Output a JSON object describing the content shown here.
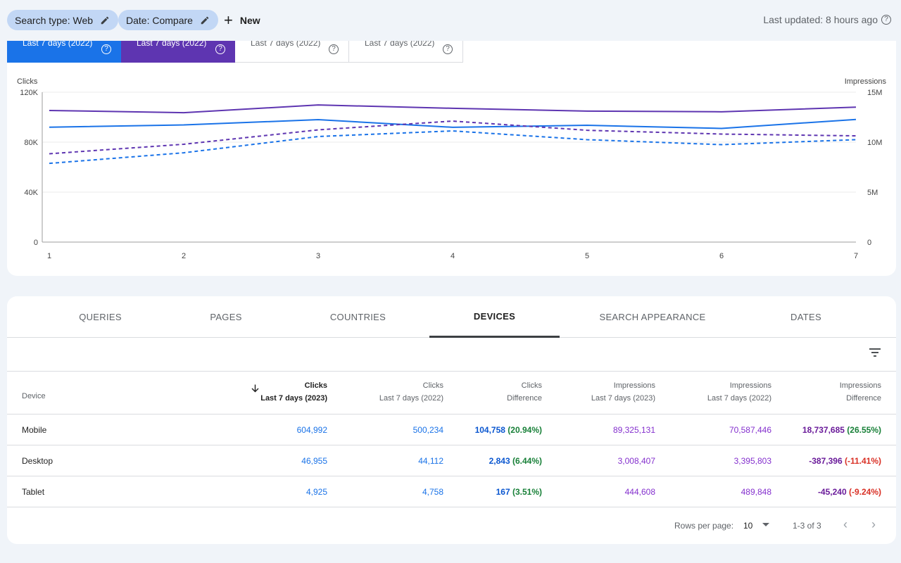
{
  "topbar": {
    "chips": [
      {
        "label": "Search type: Web"
      },
      {
        "label": "Date: Compare"
      }
    ],
    "new_label": "New",
    "last_updated": "Last updated: 8 hours ago"
  },
  "metric_tiles": [
    {
      "label": "Last 7 days (2022)",
      "style": "blue"
    },
    {
      "label": "Last 7 days (2022)",
      "style": "purple"
    },
    {
      "label": "Last 7 days (2022)",
      "style": "plain"
    },
    {
      "label": "Last 7 days (2022)",
      "style": "plain"
    }
  ],
  "chart_data": {
    "type": "line",
    "x": [
      1,
      2,
      3,
      4,
      5,
      6,
      7
    ],
    "left_axis": {
      "title": "Clicks",
      "ticks": [
        "0",
        "40K",
        "80K",
        "120K"
      ],
      "range": [
        0,
        120000
      ]
    },
    "right_axis": {
      "title": "Impressions",
      "ticks": [
        "0",
        "5M",
        "10M",
        "15M"
      ],
      "range": [
        0,
        15000000
      ]
    },
    "series": [
      {
        "name": "Impressions Last 7 days (2023)",
        "axis": "right",
        "color": "#5e35b1",
        "dashed": false,
        "values": [
          13170000,
          12950000,
          13720000,
          13390000,
          13110000,
          13040000,
          13500000
        ]
      },
      {
        "name": "Clicks Last 7 days (2023)",
        "axis": "left",
        "color": "#1a73e8",
        "dashed": false,
        "values": [
          92000,
          93800,
          98000,
          91900,
          93500,
          91000,
          98200
        ]
      },
      {
        "name": "Impressions Last 7 days (2022)",
        "axis": "right",
        "color": "#5e35b1",
        "dashed": true,
        "values": [
          8840000,
          9790000,
          11230000,
          12110000,
          11190000,
          10810000,
          10630000
        ]
      },
      {
        "name": "Clicks Last 7 days (2022)",
        "axis": "left",
        "color": "#1a73e8",
        "dashed": true,
        "values": [
          63000,
          71500,
          84500,
          89000,
          82000,
          78000,
          82000
        ]
      }
    ]
  },
  "tabs": [
    {
      "label": "QUERIES",
      "active": false
    },
    {
      "label": "PAGES",
      "active": false
    },
    {
      "label": "COUNTRIES",
      "active": false
    },
    {
      "label": "DEVICES",
      "active": true
    },
    {
      "label": "SEARCH APPEARANCE",
      "active": false
    },
    {
      "label": "DATES",
      "active": false
    }
  ],
  "table": {
    "headers": [
      {
        "label": "Device",
        "sub": ""
      },
      {
        "label": "Clicks",
        "sub": "Last 7 days (2023)"
      },
      {
        "label": "Clicks",
        "sub": "Last 7 days (2022)"
      },
      {
        "label": "Clicks",
        "sub": "Difference"
      },
      {
        "label": "Impressions",
        "sub": "Last 7 days (2023)"
      },
      {
        "label": "Impressions",
        "sub": "Last 7 days (2022)"
      },
      {
        "label": "Impressions",
        "sub": "Difference"
      }
    ],
    "rows": [
      {
        "device": "Mobile",
        "clicks_2023": "604,992",
        "clicks_2022": "500,234",
        "clicks_diff": "104,758",
        "clicks_pct": "(20.94%)",
        "impr_2023": "89,325,131",
        "impr_2022": "70,587,446",
        "impr_diff": "18,737,685",
        "impr_pct": "(26.55%)",
        "impr_pct_positive": true
      },
      {
        "device": "Desktop",
        "clicks_2023": "46,955",
        "clicks_2022": "44,112",
        "clicks_diff": "2,843",
        "clicks_pct": "(6.44%)",
        "impr_2023": "3,008,407",
        "impr_2022": "3,395,803",
        "impr_diff": "-387,396",
        "impr_pct": "(-11.41%)",
        "impr_pct_positive": false
      },
      {
        "device": "Tablet",
        "clicks_2023": "4,925",
        "clicks_2022": "4,758",
        "clicks_diff": "167",
        "clicks_pct": "(3.51%)",
        "impr_2023": "444,608",
        "impr_2022": "489,848",
        "impr_diff": "-45,240",
        "impr_pct": "(-9.24%)",
        "impr_pct_positive": false
      }
    ]
  },
  "pagination": {
    "rows_per_page_label": "Rows per page:",
    "rows_per_page_value": "10",
    "range_label": "1-3 of 3"
  }
}
